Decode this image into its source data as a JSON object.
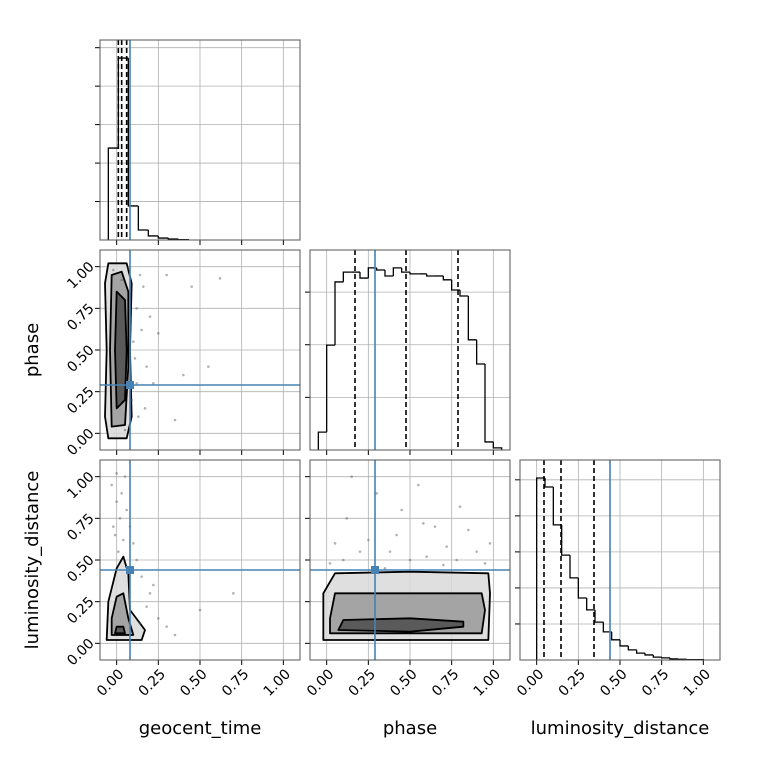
{
  "chart_data": [
    {
      "type": "histogram",
      "bins": [
        -0.05,
        0.01,
        0.07,
        0.13,
        0.19,
        0.25,
        0.31,
        0.37,
        0.43
      ],
      "counts": [
        478,
        946,
        177,
        52,
        21,
        10,
        5,
        2
      ],
      "quantiles": [
        0.01,
        0.03,
        0.06
      ],
      "truth": 0.08,
      "truth_color": "#4682b4",
      "color": "#000000",
      "xlim": [
        -0.1,
        1.1
      ],
      "xticks": [
        0,
        0.25,
        0.5,
        0.75,
        1
      ],
      "ylim": [
        0,
        1040
      ],
      "yticks": [
        200,
        400,
        600,
        800,
        1000
      ],
      "grid": true
    },
    {
      "type": "contour2d",
      "ylabel": "phase",
      "xlim": [
        -0.1,
        1.1
      ],
      "xticks": [
        0,
        0.25,
        0.5,
        0.75,
        1
      ],
      "ylim": [
        -0.1,
        1.1
      ],
      "yticks": [
        {
          "value": 0,
          "label": "0.00"
        },
        {
          "value": 0.25,
          "label": "0.25"
        },
        {
          "value": 0.5,
          "label": "0.50"
        },
        {
          "value": 0.75,
          "label": "0.75"
        },
        {
          "value": 1,
          "label": "1.00"
        }
      ],
      "grid": true,
      "truth_x": 0.08,
      "truth_y": 0.29,
      "truth_color": "#4682b4",
      "contour_colors": [
        "#d9d9d9",
        "#9a9a9a",
        "#4d4d4d"
      ],
      "contours": [
        {
          "x": [
            -0.05,
            0.06,
            0.09,
            0.08,
            0.09,
            0.06,
            -0.05,
            -0.07,
            -0.06,
            -0.07
          ],
          "y": [
            -0.03,
            -0.03,
            0.1,
            0.5,
            0.9,
            1.02,
            1.02,
            0.9,
            0.5,
            0.1
          ]
        },
        {
          "x": [
            -0.03,
            0.05,
            0.07,
            0.07,
            0.03,
            -0.03,
            -0.04
          ],
          "y": [
            0.04,
            0.05,
            0.4,
            0.85,
            0.97,
            0.95,
            0.5
          ]
        },
        {
          "x": [
            0.0,
            0.05,
            0.06,
            0.05,
            0.0,
            -0.01
          ],
          "y": [
            0.15,
            0.2,
            0.5,
            0.8,
            0.85,
            0.5
          ]
        }
      ],
      "points": {
        "x": [
          -0.02,
          0.03,
          0.08,
          0.12,
          0.15,
          0.1,
          0.18,
          0.22,
          0.3,
          0.45,
          0.55,
          0.62,
          0.05,
          0.13,
          0.09,
          0.2,
          0.16,
          0.11,
          0.25,
          0.4,
          0.14,
          0.07,
          0.17,
          0.12,
          0.35
        ],
        "y": [
          0.98,
          0.92,
          0.85,
          0.75,
          0.62,
          0.55,
          0.4,
          0.3,
          0.95,
          0.88,
          0.4,
          0.93,
          0.02,
          0.1,
          0.2,
          0.7,
          0.88,
          0.45,
          0.6,
          0.35,
          0.95,
          0.99,
          0.15,
          0.3,
          0.08
        ]
      }
    },
    {
      "type": "histogram",
      "bins": [
        -0.05,
        0,
        0.05,
        0.1,
        0.15,
        0.2,
        0.25,
        0.3,
        0.35,
        0.4,
        0.45,
        0.5,
        0.55,
        0.6,
        0.65,
        0.7,
        0.75,
        0.8,
        0.85,
        0.9,
        0.95,
        1.0,
        1.05
      ],
      "counts": [
        51,
        299,
        479,
        507,
        507,
        490,
        519,
        513,
        496,
        519,
        507,
        502,
        502,
        496,
        496,
        485,
        456,
        439,
        314,
        245,
        23,
        6
      ],
      "quantiles": [
        0.17,
        0.476,
        0.788
      ],
      "truth": 0.29,
      "truth_color": "#4682b4",
      "color": "#000000",
      "xlim": [
        -0.1,
        1.1
      ],
      "xticks": [
        0,
        0.25,
        0.5,
        0.75,
        1
      ],
      "ylim": [
        0,
        570
      ],
      "yticks": [
        150,
        300,
        450
      ],
      "grid": true
    },
    {
      "type": "contour2d",
      "xlabel": "geocent_time",
      "ylabel": "luminosity_distance",
      "xlim": [
        -0.1,
        1.1
      ],
      "xticks": [
        {
          "value": 0,
          "label": "0.00"
        },
        {
          "value": 0.25,
          "label": "0.25"
        },
        {
          "value": 0.5,
          "label": "0.50"
        },
        {
          "value": 0.75,
          "label": "0.75"
        },
        {
          "value": 1,
          "label": "1.00"
        }
      ],
      "ylim": [
        -0.1,
        1.1
      ],
      "yticks": [
        {
          "value": 0,
          "label": "0.00"
        },
        {
          "value": 0.25,
          "label": "0.25"
        },
        {
          "value": 0.5,
          "label": "0.50"
        },
        {
          "value": 0.75,
          "label": "0.75"
        },
        {
          "value": 1,
          "label": "1.00"
        }
      ],
      "grid": true,
      "truth_x": 0.08,
      "truth_y": 0.44,
      "truth_color": "#4682b4",
      "contour_colors": [
        "#d9d9d9",
        "#9a9a9a",
        "#4d4d4d"
      ],
      "contours": [
        {
          "x": [
            -0.06,
            0.15,
            0.17,
            0.08,
            0.07,
            0.04,
            0.0,
            -0.05
          ],
          "y": [
            0.02,
            0.02,
            0.08,
            0.2,
            0.42,
            0.52,
            0.45,
            0.25
          ]
        },
        {
          "x": [
            -0.03,
            0.1,
            0.07,
            0.04,
            0.0,
            -0.03
          ],
          "y": [
            0.05,
            0.05,
            0.15,
            0.3,
            0.28,
            0.15
          ]
        },
        {
          "x": [
            -0.01,
            0.05,
            0.04,
            0.0
          ],
          "y": [
            0.06,
            0.06,
            0.1,
            0.1
          ]
        }
      ],
      "points": {
        "x": [
          -0.03,
          0.0,
          0.02,
          -0.01,
          0.03,
          0.05,
          0.1,
          0.15,
          0.2,
          0.25,
          0.3,
          0.12,
          0.08,
          0.5,
          0.7,
          0.01,
          -0.02,
          0.04,
          0.18,
          0.35,
          0.06,
          0.22,
          0.09,
          0.14,
          0.0
        ],
        "y": [
          0.95,
          0.85,
          0.75,
          0.65,
          0.9,
          1.0,
          0.6,
          0.4,
          0.3,
          0.15,
          0.1,
          0.5,
          0.7,
          0.2,
          0.3,
          0.55,
          0.7,
          0.62,
          0.22,
          0.05,
          0.8,
          0.35,
          0.45,
          0.12,
          1.02
        ]
      }
    },
    {
      "type": "contour2d",
      "xlabel": "phase",
      "xlim": [
        -0.1,
        1.1
      ],
      "xticks": [
        {
          "value": 0,
          "label": "0.00"
        },
        {
          "value": 0.25,
          "label": "0.25"
        },
        {
          "value": 0.5,
          "label": "0.50"
        },
        {
          "value": 0.75,
          "label": "0.75"
        },
        {
          "value": 1,
          "label": "1.00"
        }
      ],
      "ylim": [
        -0.1,
        1.1
      ],
      "yticks": [
        0,
        0.25,
        0.5,
        0.75,
        1
      ],
      "grid": true,
      "truth_x": 0.29,
      "truth_y": 0.44,
      "truth_color": "#4682b4",
      "contour_colors": [
        "#d9d9d9",
        "#9a9a9a",
        "#4d4d4d"
      ],
      "contours": [
        {
          "x": [
            -0.02,
            0.97,
            0.98,
            0.97,
            0.5,
            0.05,
            -0.02
          ],
          "y": [
            0.02,
            0.02,
            0.3,
            0.42,
            0.43,
            0.42,
            0.3
          ]
        },
        {
          "x": [
            0.02,
            0.93,
            0.95,
            0.93,
            0.5,
            0.05,
            0.02
          ],
          "y": [
            0.06,
            0.06,
            0.2,
            0.3,
            0.3,
            0.3,
            0.15
          ]
        },
        {
          "x": [
            0.07,
            0.5,
            0.82,
            0.82,
            0.5,
            0.1
          ],
          "y": [
            0.08,
            0.07,
            0.1,
            0.13,
            0.15,
            0.14
          ]
        }
      ],
      "points": {
        "x": [
          0.05,
          0.12,
          0.2,
          0.3,
          0.42,
          0.5,
          0.55,
          0.65,
          0.72,
          0.8,
          0.9,
          0.95,
          0.25,
          0.35,
          0.6,
          0.85,
          0.1,
          0.45,
          0.7,
          0.98,
          0.15,
          0.38,
          0.58,
          0.78,
          0.02
        ],
        "y": [
          0.6,
          0.75,
          0.55,
          0.9,
          0.65,
          0.5,
          0.95,
          0.7,
          0.58,
          0.82,
          0.55,
          0.48,
          0.62,
          0.45,
          0.52,
          0.68,
          0.5,
          0.8,
          0.47,
          0.6,
          1.0,
          0.55,
          0.72,
          0.5,
          0.48
        ]
      }
    },
    {
      "type": "histogram",
      "xlabel": "luminosity_distance",
      "bins": [
        0,
        0.05,
        0.1,
        0.15,
        0.2,
        0.25,
        0.3,
        0.35,
        0.4,
        0.45,
        0.5,
        0.55,
        0.6,
        0.65,
        0.7,
        0.75,
        0.8,
        0.85,
        0.9,
        0.95,
        1.0
      ],
      "counts": [
        505,
        480,
        375,
        291,
        228,
        172,
        139,
        105,
        78,
        56,
        39,
        28,
        19,
        14,
        8,
        6,
        3,
        2,
        1,
        1
      ],
      "quantiles": [
        0.044,
        0.146,
        0.344
      ],
      "truth": 0.44,
      "truth_color": "#4682b4",
      "color": "#000000",
      "xlim": [
        -0.1,
        1.1
      ],
      "xticks": [
        {
          "value": 0,
          "label": "0.00"
        },
        {
          "value": 0.25,
          "label": "0.25"
        },
        {
          "value": 0.5,
          "label": "0.50"
        },
        {
          "value": 0.75,
          "label": "0.75"
        },
        {
          "value": 1,
          "label": "1.00"
        }
      ],
      "ylim": [
        0,
        555
      ],
      "yticks": [
        100,
        200,
        300,
        400,
        500
      ],
      "grid": true
    }
  ]
}
